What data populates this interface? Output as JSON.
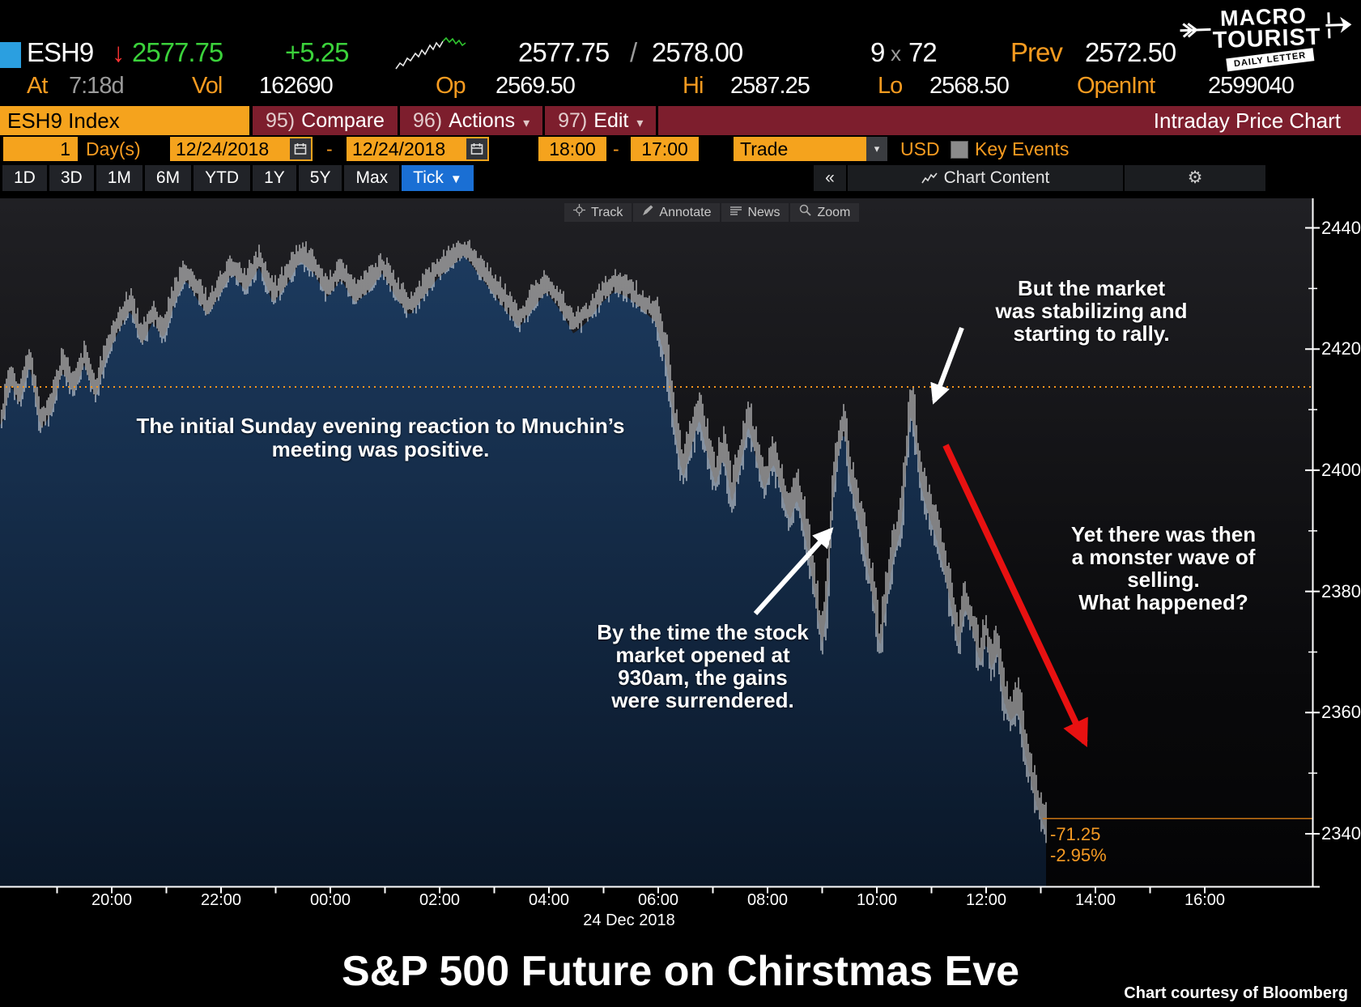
{
  "quote": {
    "ticker": "ESH9",
    "down_arrow": "↓",
    "last": "2577.75",
    "change": "+5.25",
    "bid": "2577.75",
    "slash": " /",
    "ask": "2578.00",
    "size_bid": "9",
    "size_sep": "x",
    "size_ask": "72",
    "prev_label": "Prev",
    "prev": "2572.50",
    "at_label": "At",
    "at_value": "7:18d",
    "vol_label": "Vol",
    "vol": "162690",
    "op_label": "Op",
    "op": "2569.50",
    "hi_label": "Hi",
    "hi": "2587.25",
    "lo_label": "Lo",
    "lo": "2568.50",
    "openint_label": "OpenInt",
    "openint": "2599040"
  },
  "logo": {
    "line1": "MACRO",
    "line2": "TOURIST",
    "ribbon": "DAILY LETTER"
  },
  "menubar": {
    "security": "ESH9 Index",
    "items": [
      {
        "num": "95)",
        "label": "Compare",
        "caret": ""
      },
      {
        "num": "96)",
        "label": "Actions",
        "caret": "▾"
      },
      {
        "num": "97)",
        "label": "Edit",
        "caret": "▾"
      }
    ],
    "title": "Intraday Price Chart"
  },
  "rangebar": {
    "count": "1",
    "days_label": "Day(s)",
    "date_from": "12/24/2018",
    "dash1": "-",
    "date_to": "12/24/2018",
    "time_from": "18:00",
    "dash2": "-",
    "time_to": "17:00",
    "trade": "Trade",
    "dd_caret": "▾",
    "currency": "USD",
    "key_events": "Key Events"
  },
  "tabs": {
    "items": [
      "1D",
      "3D",
      "1M",
      "6M",
      "YTD",
      "1Y",
      "5Y",
      "Max"
    ],
    "active": "Tick",
    "active_caret": "▼",
    "collapse": "«",
    "chart_content": "Chart Content",
    "gear": "⚙"
  },
  "chart_tools": [
    "Track",
    "Annotate",
    "News",
    "Zoom"
  ],
  "annotations": {
    "positive": "The initial Sunday evening reaction to Mnuchin’s\nmeeting was positive.",
    "stabilizing": "But the market\nwas stabilizing and\nstarting to rally.",
    "monster": "Yet there was then\na monster wave of\nselling.\nWhat happened?",
    "surrendered": "By the time the stock\nmarket opened at\n930am, the gains\nwere surrendered."
  },
  "last_change": {
    "points": "-71.25",
    "percent": "-2.95%"
  },
  "footer": {
    "title": "S&P 500 Future on Chirstmas Eve",
    "credit": "Chart courtesy of Bloomberg"
  },
  "colors": {
    "accent_orange": "#f5a31d",
    "maroon": "#7d1e2d",
    "up_green": "#3bd23b",
    "down_red": "#ff3333",
    "tab_blue": "#1a6fd4",
    "fill_navy_top": "#1c3a5e",
    "fill_navy_bottom": "#0a1728",
    "prev_close_line": "#f8961d",
    "last_price_line": "#c87414"
  },
  "chart_data": {
    "type": "line",
    "title": "S&P 500 Future on Chirstmas Eve",
    "date_label": "24 Dec 2018",
    "x_ticks": [
      "20:00",
      "22:00",
      "00:00",
      "02:00",
      "04:00",
      "06:00",
      "08:00",
      "10:00",
      "12:00",
      "14:00",
      "16:00"
    ],
    "y_ticks": [
      2440,
      2420,
      2400,
      2380,
      2360,
      2340
    ],
    "y_minor_ticks": [
      2430,
      2410,
      2390,
      2370,
      2350
    ],
    "ylim": [
      2331,
      2445
    ],
    "session_start": "18:00",
    "session_hours": 23,
    "data_end_hour": 19.1,
    "prev_close": 2413.75,
    "last_price": 2342.5,
    "series": [
      [
        0,
        2409
      ],
      [
        0.15,
        2416
      ],
      [
        0.3,
        2412
      ],
      [
        0.5,
        2419
      ],
      [
        0.7,
        2408
      ],
      [
        0.9,
        2411
      ],
      [
        1.1,
        2418
      ],
      [
        1.3,
        2414
      ],
      [
        1.5,
        2419
      ],
      [
        1.7,
        2413
      ],
      [
        1.9,
        2420
      ],
      [
        2.1,
        2424
      ],
      [
        2.35,
        2428
      ],
      [
        2.55,
        2422
      ],
      [
        2.75,
        2426
      ],
      [
        2.95,
        2423
      ],
      [
        3.15,
        2429
      ],
      [
        3.35,
        2433
      ],
      [
        3.55,
        2430
      ],
      [
        3.75,
        2427
      ],
      [
        3.95,
        2430
      ],
      [
        4.2,
        2434
      ],
      [
        4.45,
        2431
      ],
      [
        4.7,
        2435
      ],
      [
        4.95,
        2429
      ],
      [
        5.2,
        2432
      ],
      [
        5.45,
        2436
      ],
      [
        5.7,
        2434
      ],
      [
        5.95,
        2430
      ],
      [
        6.2,
        2433
      ],
      [
        6.45,
        2429
      ],
      [
        6.7,
        2431
      ],
      [
        6.95,
        2434
      ],
      [
        7.2,
        2430
      ],
      [
        7.45,
        2427
      ],
      [
        7.7,
        2430
      ],
      [
        7.95,
        2433
      ],
      [
        8.2,
        2435
      ],
      [
        8.45,
        2437
      ],
      [
        8.7,
        2434
      ],
      [
        8.95,
        2431
      ],
      [
        9.2,
        2428
      ],
      [
        9.45,
        2425
      ],
      [
        9.7,
        2428
      ],
      [
        9.95,
        2431
      ],
      [
        10.2,
        2428
      ],
      [
        10.45,
        2424
      ],
      [
        10.7,
        2426
      ],
      [
        10.95,
        2429
      ],
      [
        11.2,
        2431
      ],
      [
        11.45,
        2430
      ],
      [
        11.7,
        2428
      ],
      [
        11.95,
        2426
      ],
      [
        12.15,
        2419
      ],
      [
        12.3,
        2408
      ],
      [
        12.45,
        2400
      ],
      [
        12.6,
        2405
      ],
      [
        12.75,
        2410
      ],
      [
        12.9,
        2404
      ],
      [
        13.05,
        2399
      ],
      [
        13.2,
        2404
      ],
      [
        13.35,
        2396
      ],
      [
        13.5,
        2402
      ],
      [
        13.65,
        2409
      ],
      [
        13.8,
        2403
      ],
      [
        13.95,
        2398
      ],
      [
        14.1,
        2403
      ],
      [
        14.25,
        2398
      ],
      [
        14.4,
        2393
      ],
      [
        14.55,
        2397
      ],
      [
        14.7,
        2390
      ],
      [
        14.85,
        2382
      ],
      [
        15,
        2372
      ],
      [
        15.1,
        2380
      ],
      [
        15.2,
        2398
      ],
      [
        15.3,
        2404
      ],
      [
        15.4,
        2409
      ],
      [
        15.5,
        2400
      ],
      [
        15.65,
        2394
      ],
      [
        15.8,
        2387
      ],
      [
        15.95,
        2379
      ],
      [
        16.05,
        2371
      ],
      [
        16.15,
        2378
      ],
      [
        16.3,
        2387
      ],
      [
        16.45,
        2392
      ],
      [
        16.55,
        2403
      ],
      [
        16.62,
        2412
      ],
      [
        16.7,
        2407
      ],
      [
        16.8,
        2399
      ],
      [
        16.95,
        2394
      ],
      [
        17.1,
        2390
      ],
      [
        17.25,
        2384
      ],
      [
        17.4,
        2377
      ],
      [
        17.5,
        2372
      ],
      [
        17.6,
        2379
      ],
      [
        17.75,
        2375
      ],
      [
        17.9,
        2369
      ],
      [
        18,
        2374
      ],
      [
        18.1,
        2368
      ],
      [
        18.2,
        2372
      ],
      [
        18.3,
        2364
      ],
      [
        18.45,
        2360
      ],
      [
        18.6,
        2362
      ],
      [
        18.7,
        2355
      ],
      [
        18.8,
        2351
      ],
      [
        18.9,
        2347
      ],
      [
        19,
        2344
      ],
      [
        19.1,
        2342
      ]
    ]
  }
}
